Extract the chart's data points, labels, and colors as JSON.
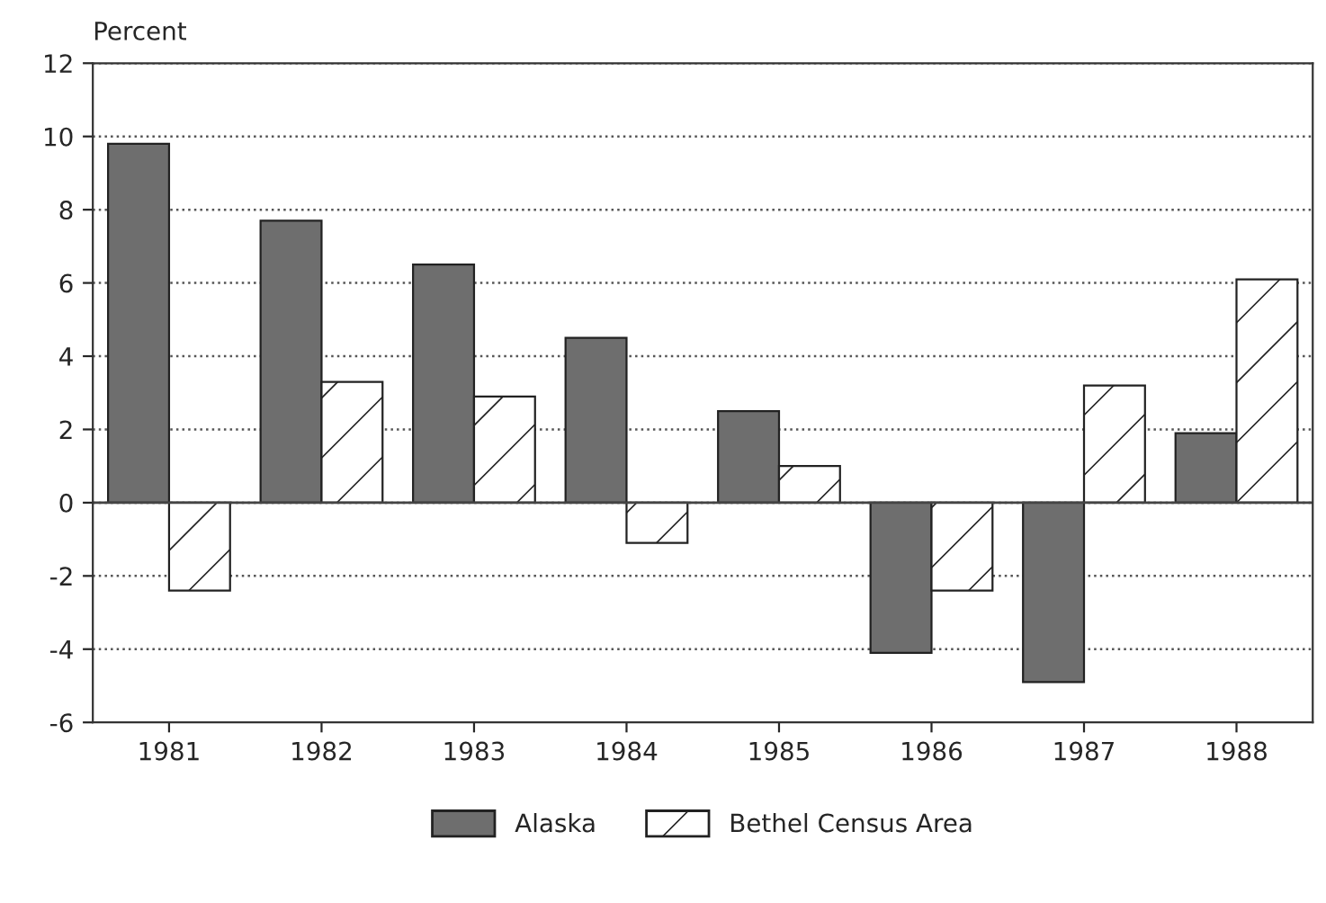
{
  "chart_data": {
    "type": "bar",
    "ylabel": "Percent",
    "categories": [
      "1981",
      "1982",
      "1983",
      "1984",
      "1985",
      "1986",
      "1987",
      "1988"
    ],
    "series": [
      {
        "name": "Alaska",
        "color": "#6e6e6e",
        "values": [
          9.8,
          7.7,
          6.5,
          4.5,
          2.5,
          -4.1,
          -4.9,
          1.9
        ]
      },
      {
        "name": "Bethel Census Area",
        "color": "#ffffff",
        "values": [
          -2.4,
          3.3,
          2.9,
          -1.1,
          1.0,
          -2.4,
          3.2,
          6.1
        ]
      }
    ],
    "ylim": [
      -6,
      12
    ],
    "yticks": [
      -6,
      -4,
      -2,
      0,
      2,
      4,
      6,
      8,
      10,
      12
    ],
    "grid": "y",
    "legend": "bottom"
  }
}
